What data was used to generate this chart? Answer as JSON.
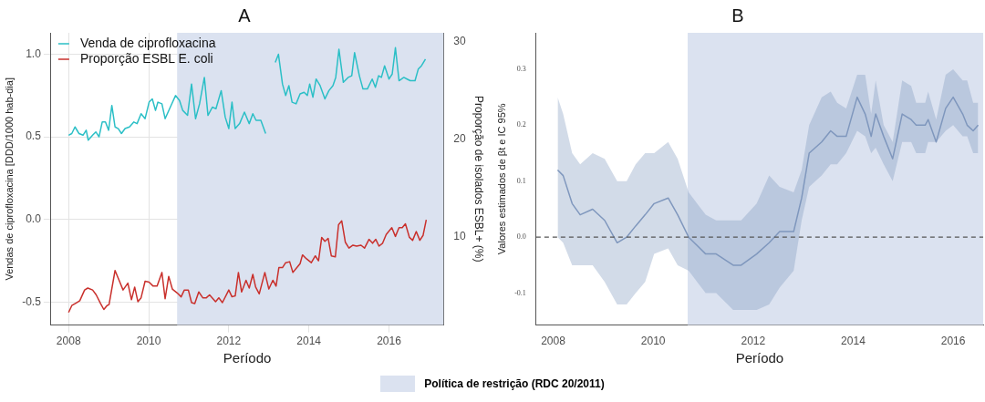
{
  "chart_data": [
    {
      "type": "line",
      "title": "A",
      "xlabel": "Período",
      "ylabel": "Vendas de ciprofloxacina [DDD/1000 hab-dia]",
      "y2label": "Proporção de isolados ESBL+ (%)",
      "xlim": [
        2007.56,
        2017.36
      ],
      "xticks": [
        2008,
        2010,
        2012,
        2014,
        2016
      ],
      "ylim": [
        -0.64,
        1.13
      ],
      "yticks": [
        {
          "value": -0.5,
          "label": "-0.5"
        },
        {
          "value": 0,
          "label": "0.0"
        },
        0.5,
        {
          "value": 1,
          "label": "1.0"
        }
      ],
      "y2lim": [
        0.9,
        30.9
      ],
      "y2ticks": [
        10,
        20,
        30
      ],
      "grid": true,
      "legend": "top left",
      "marker": "none",
      "bands": [
        {
          "axis": "x",
          "from": 2010.71,
          "to": 2017.36,
          "color": "#dbe2f0"
        }
      ],
      "series": [
        {
          "name": "Venda de ciprofloxacina",
          "color": "#2bbfc6",
          "x": [
            2008.0,
            2008.08,
            2008.16,
            2008.26,
            2008.36,
            2008.44,
            2008.49,
            2008.6,
            2008.68,
            2008.76,
            2008.84,
            2008.92,
            2009.0,
            2009.08,
            2009.16,
            2009.24,
            2009.32,
            2009.41,
            2009.52,
            2009.63,
            2009.71,
            2009.81,
            2009.91,
            2010.01,
            2010.09,
            2010.17,
            2010.23,
            2010.33,
            2010.41,
            2010.54,
            2010.67,
            2010.77,
            2010.85,
            2010.97,
            2011.07,
            2011.17,
            2011.27,
            2011.39,
            2011.48,
            2011.59,
            2011.68,
            2011.81,
            2011.91,
            2012.0,
            2012.08,
            2012.16,
            2012.27,
            2012.39,
            2012.51,
            2012.6,
            2012.68,
            2012.8,
            2012.92,
            2013.04,
            2013.16,
            2013.24,
            2013.34,
            2013.42,
            2013.5,
            2013.58,
            2013.68,
            2013.78,
            2013.88,
            2013.96,
            2014.02,
            2014.1,
            2014.18,
            2014.28,
            2014.4,
            2014.5,
            2014.6,
            2014.67,
            2014.75,
            2014.86,
            2014.98,
            2015.07,
            2015.14,
            2015.26,
            2015.35,
            2015.46,
            2015.58,
            2015.66,
            2015.74,
            2015.81,
            2015.89,
            2016.0,
            2016.08,
            2016.16,
            2016.25,
            2016.37,
            2016.45,
            2016.53,
            2016.65,
            2016.73,
            2016.81,
            2016.91
          ],
          "values": [
            0.51,
            0.52,
            0.56,
            0.52,
            0.51,
            0.54,
            0.48,
            0.51,
            0.53,
            0.5,
            0.59,
            0.59,
            0.54,
            0.69,
            0.56,
            0.55,
            0.52,
            0.55,
            0.56,
            0.59,
            0.58,
            0.64,
            0.61,
            0.71,
            0.73,
            0.66,
            0.71,
            0.7,
            0.61,
            0.68,
            0.75,
            0.72,
            0.66,
            0.63,
            0.82,
            0.61,
            0.7,
            0.86,
            0.63,
            0.68,
            0.67,
            0.78,
            0.62,
            0.55,
            0.71,
            0.55,
            0.58,
            0.65,
            0.58,
            0.64,
            0.6,
            0.6,
            0.52,
            null,
            0.95,
            1.0,
            0.82,
            0.75,
            0.81,
            0.71,
            0.7,
            0.76,
            0.77,
            0.75,
            0.82,
            0.74,
            0.85,
            0.81,
            0.73,
            0.78,
            0.81,
            0.86,
            1.03,
            0.83,
            0.86,
            0.87,
            1.01,
            0.87,
            0.79,
            0.79,
            0.85,
            0.8,
            0.87,
            0.86,
            0.93,
            0.85,
            0.88,
            1.04,
            0.84,
            0.86,
            0.85,
            0.84,
            0.84,
            0.91,
            0.93,
            0.97
          ]
        },
        {
          "name": "Proporção ESBL E. coli",
          "color": "#c9302c",
          "axis": "y2",
          "x": [
            2008.0,
            2008.08,
            2008.2,
            2008.28,
            2008.4,
            2008.48,
            2008.6,
            2008.69,
            2008.8,
            2008.88,
            2008.96,
            2009.01,
            2009.16,
            2009.28,
            2009.36,
            2009.48,
            2009.57,
            2009.65,
            2009.73,
            2009.81,
            2009.91,
            2010.01,
            2010.11,
            2010.21,
            2010.33,
            2010.41,
            2010.5,
            2010.59,
            2010.71,
            2010.81,
            2010.89,
            2010.99,
            2011.07,
            2011.15,
            2011.25,
            2011.35,
            2011.44,
            2011.52,
            2011.67,
            2011.75,
            2011.84,
            2012.0,
            2012.08,
            2012.16,
            2012.24,
            2012.32,
            2012.43,
            2012.51,
            2012.6,
            2012.67,
            2012.76,
            2012.9,
            2013.0,
            2013.1,
            2013.18,
            2013.25,
            2013.34,
            2013.42,
            2013.52,
            2013.6,
            2013.7,
            2013.78,
            2013.84,
            2013.94,
            2014.06,
            2014.16,
            2014.24,
            2014.32,
            2014.4,
            2014.48,
            2014.56,
            2014.66,
            2014.74,
            2014.82,
            2014.91,
            2015.0,
            2015.1,
            2015.19,
            2015.3,
            2015.39,
            2015.5,
            2015.59,
            2015.67,
            2015.75,
            2015.84,
            2015.93,
            2016.07,
            2016.16,
            2016.25,
            2016.33,
            2016.41,
            2016.51,
            2016.59,
            2016.68,
            2016.77,
            2016.85,
            2016.93
          ],
          "values": [
            2.2,
            2.9,
            3.2,
            3.4,
            4.5,
            4.7,
            4.5,
            4.0,
            3.1,
            2.5,
            2.9,
            3.0,
            6.5,
            5.3,
            4.5,
            5.2,
            3.5,
            4.8,
            3.3,
            3.7,
            5.4,
            5.3,
            4.9,
            4.9,
            6.3,
            3.6,
            5.9,
            4.6,
            4.2,
            3.8,
            4.5,
            4.5,
            3.2,
            3.1,
            4.3,
            3.7,
            3.7,
            4.0,
            3.3,
            3.7,
            3.2,
            4.5,
            3.8,
            3.9,
            6.3,
            4.3,
            5.5,
            4.7,
            6.1,
            4.8,
            4.1,
            6.3,
            4.6,
            5.5,
            4.9,
            6.8,
            6.8,
            7.3,
            7.4,
            6.3,
            6.8,
            7.2,
            8.1,
            7.7,
            7.3,
            8.0,
            7.5,
            9.9,
            9.5,
            9.8,
            8.0,
            7.9,
            11.2,
            11.6,
            9.4,
            8.8,
            9.1,
            9.0,
            9.1,
            8.8,
            9.7,
            9.3,
            9.7,
            9.0,
            9.3,
            10.2,
            10.9,
            10.0,
            10.9,
            10.9,
            11.3,
            9.9,
            9.6,
            10.5,
            9.6,
            10.1,
            11.7
          ]
        }
      ]
    },
    {
      "type": "line",
      "title": "B",
      "xlabel": "Período",
      "ylabel": "Valores estimados de βt e IC 95%",
      "xlim": [
        2007.66,
        2016.6
      ],
      "xticks": [
        2008,
        2010,
        2012,
        2014,
        2016
      ],
      "ylim": [
        -0.157,
        0.365
      ],
      "yticks": [
        -0.1,
        {
          "value": 0,
          "label": "0.0"
        },
        0.1,
        0.2,
        0.3
      ],
      "grid": false,
      "marker": "none",
      "bands": [
        {
          "axis": "x",
          "from": 2010.69,
          "to": 2016.6,
          "label": "Política de restrição (RDC 20/2011)",
          "color": "#dbe2f0"
        }
      ],
      "ref_lines": [
        {
          "axis": "y",
          "value": 0,
          "color": "#555555",
          "line_style": "dashed"
        }
      ],
      "series": [
        {
          "color": "#7f97bd",
          "x": [
            2008.09,
            2008.2,
            2008.38,
            2008.54,
            2008.79,
            2009.03,
            2009.28,
            2009.47,
            2009.65,
            2009.84,
            2010.02,
            2010.3,
            2010.49,
            2010.71,
            2011.05,
            2011.26,
            2011.6,
            2011.76,
            2012.07,
            2012.32,
            2012.53,
            2012.81,
            2012.97,
            2013.12,
            2013.37,
            2013.55,
            2013.68,
            2013.86,
            2014.08,
            2014.24,
            2014.36,
            2014.45,
            2014.61,
            2014.79,
            2014.98,
            2015.16,
            2015.26,
            2015.44,
            2015.5,
            2015.66,
            2015.85,
            2016.0,
            2016.19,
            2016.28,
            2016.4,
            2016.5
          ],
          "values": [
            0.12,
            0.11,
            0.06,
            0.04,
            0.05,
            0.03,
            -0.01,
            0.0,
            0.02,
            0.04,
            0.06,
            0.07,
            0.04,
            0.0,
            -0.03,
            -0.03,
            -0.05,
            -0.05,
            -0.03,
            -0.01,
            0.01,
            0.01,
            0.07,
            0.15,
            0.17,
            0.19,
            0.18,
            0.18,
            0.25,
            0.22,
            0.18,
            0.22,
            0.18,
            0.14,
            0.22,
            0.21,
            0.2,
            0.2,
            0.21,
            0.17,
            0.23,
            0.25,
            0.22,
            0.2,
            0.19,
            0.2
          ],
          "upper": [
            0.25,
            0.22,
            0.15,
            0.13,
            0.15,
            0.14,
            0.1,
            0.1,
            0.13,
            0.15,
            0.15,
            0.17,
            0.14,
            0.08,
            0.04,
            0.03,
            0.03,
            0.03,
            0.06,
            0.11,
            0.09,
            0.08,
            0.12,
            0.2,
            0.25,
            0.26,
            0.24,
            0.23,
            0.29,
            0.29,
            0.22,
            0.28,
            0.2,
            0.17,
            0.28,
            0.27,
            0.24,
            0.24,
            0.26,
            0.21,
            0.29,
            0.3,
            0.28,
            0.28,
            0.24,
            0.24
          ],
          "lower": [
            0.0,
            -0.01,
            -0.05,
            -0.05,
            -0.05,
            -0.08,
            -0.12,
            -0.12,
            -0.1,
            -0.08,
            -0.03,
            -0.02,
            -0.05,
            -0.06,
            -0.1,
            -0.1,
            -0.13,
            -0.13,
            -0.13,
            -0.12,
            -0.09,
            -0.06,
            0.03,
            0.09,
            0.11,
            0.13,
            0.13,
            0.15,
            0.19,
            0.18,
            0.15,
            0.16,
            0.13,
            0.1,
            0.17,
            0.17,
            0.15,
            0.15,
            0.17,
            0.17,
            0.19,
            0.2,
            0.18,
            0.18,
            0.15,
            0.15
          ]
        }
      ]
    }
  ]
}
